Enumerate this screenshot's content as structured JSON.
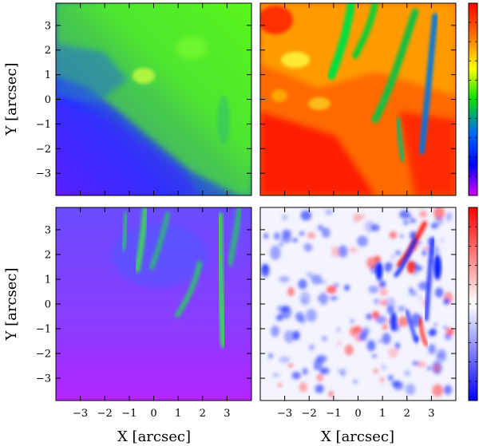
{
  "chart_data": [
    {
      "type": "heatmap",
      "panel": "top-left",
      "colormap": "rainbow",
      "xlabel": "",
      "ylabel": "Y [arcsec]",
      "xlim": [
        -4,
        4
      ],
      "ylim": [
        -3.9,
        3.9
      ],
      "x_ticks": [
        -3,
        -2,
        -1,
        0,
        1,
        2,
        3
      ],
      "y_ticks": [
        -3,
        -2,
        -1,
        0,
        1,
        2,
        3
      ],
      "x_tick_labels_shown": false,
      "y_tick_labels_shown": true,
      "colorbar": true,
      "colorbar_ticks_labeled": false
    },
    {
      "type": "heatmap",
      "panel": "top-right",
      "colormap": "rainbow",
      "xlabel": "",
      "ylabel": "",
      "xlim": [
        -4,
        4
      ],
      "ylim": [
        -3.9,
        3.9
      ],
      "x_ticks": [
        -3,
        -2,
        -1,
        0,
        1,
        2,
        3
      ],
      "y_ticks": [
        -3,
        -2,
        -1,
        0,
        1,
        2,
        3
      ],
      "x_tick_labels_shown": false,
      "y_tick_labels_shown": false,
      "colorbar": true,
      "colorbar_ticks_labeled": false
    },
    {
      "type": "heatmap",
      "panel": "bottom-left",
      "colormap": "rainbow",
      "xlabel": "X [arcsec]",
      "ylabel": "Y [arcsec]",
      "xlim": [
        -4,
        4
      ],
      "ylim": [
        -3.9,
        3.9
      ],
      "x_ticks": [
        -3,
        -2,
        -1,
        0,
        1,
        2,
        3
      ],
      "y_ticks": [
        -3,
        -2,
        -1,
        0,
        1,
        2,
        3
      ],
      "x_tick_labels_shown": true,
      "y_tick_labels_shown": true,
      "colorbar": false,
      "colorbar_ticks_labeled": false
    },
    {
      "type": "heatmap",
      "panel": "bottom-right",
      "colormap": "blue-white-red",
      "xlabel": "X [arcsec]",
      "ylabel": "",
      "xlim": [
        -4,
        4
      ],
      "ylim": [
        -3.9,
        3.9
      ],
      "x_ticks": [
        -3,
        -2,
        -1,
        0,
        1,
        2,
        3
      ],
      "y_ticks": [
        -3,
        -2,
        -1,
        0,
        1,
        2,
        3
      ],
      "x_tick_labels_shown": true,
      "y_tick_labels_shown": false,
      "colorbar": true,
      "colorbar_ticks_labeled": false
    }
  ],
  "labels": {
    "y_axis_top": "Y [arcsec]",
    "y_axis_bottom": "Y [arcsec]",
    "x_axis_left": "X [arcsec]",
    "x_axis_right": "X [arcsec]"
  },
  "tick_text": {
    "x": [
      "−3",
      "−2",
      "−1",
      "0",
      "1",
      "2",
      "3"
    ],
    "y": [
      "−3",
      "−2",
      "−1",
      "0",
      "1",
      "2",
      "3"
    ]
  },
  "colors": {
    "rainbow": [
      "#ff0000",
      "#ff7a00",
      "#ffff00",
      "#00e000",
      "#0066ff",
      "#0000ff",
      "#d400ff"
    ],
    "blue_white_red": [
      "#ff0000",
      "#ffffff",
      "#0000ff"
    ]
  }
}
